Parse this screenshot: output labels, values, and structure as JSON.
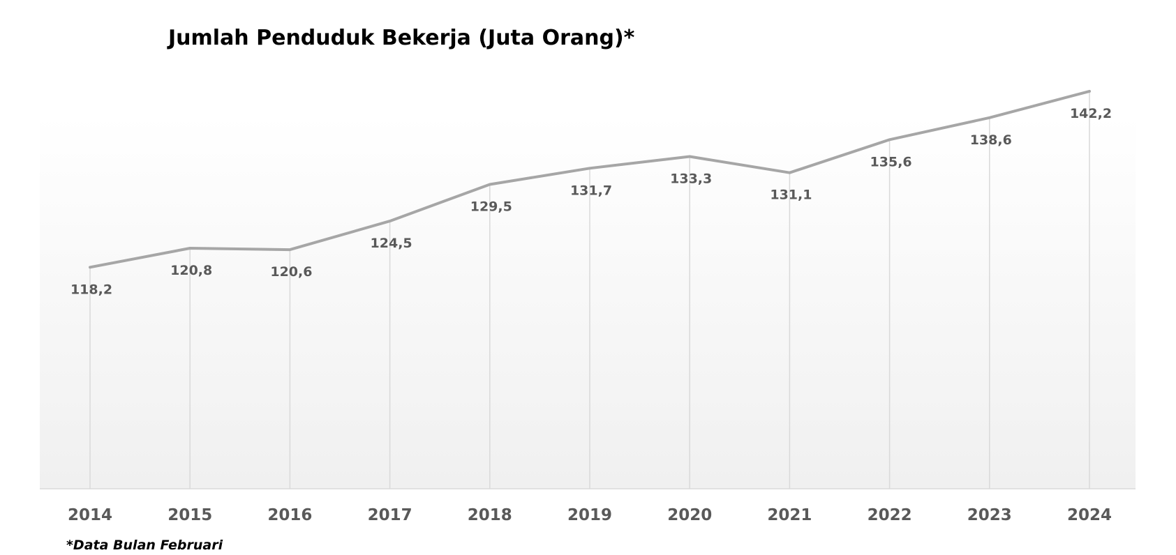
{
  "chart_data": {
    "type": "line",
    "title": "Jumlah Penduduk Bekerja (Juta Orang)*",
    "xlabel": "",
    "ylabel": "",
    "categories": [
      "2014",
      "2015",
      "2016",
      "2017",
      "2018",
      "2019",
      "2020",
      "2021",
      "2022",
      "2023",
      "2024"
    ],
    "values": [
      118.2,
      120.8,
      120.6,
      124.5,
      129.5,
      131.7,
      133.3,
      131.1,
      135.6,
      138.6,
      142.2
    ],
    "value_labels": [
      "118,2",
      "120,8",
      "120,6",
      "124,5",
      "129,5",
      "131,7",
      "133,3",
      "131,1",
      "135,6",
      "138,6",
      "142,2"
    ],
    "ylim": [
      88,
      142
    ],
    "y_axis_visible": false,
    "grid": "vertical drop lines",
    "legend": "none",
    "line_color": "#a6a6a6",
    "footnote": "*Data Bulan Februari"
  }
}
